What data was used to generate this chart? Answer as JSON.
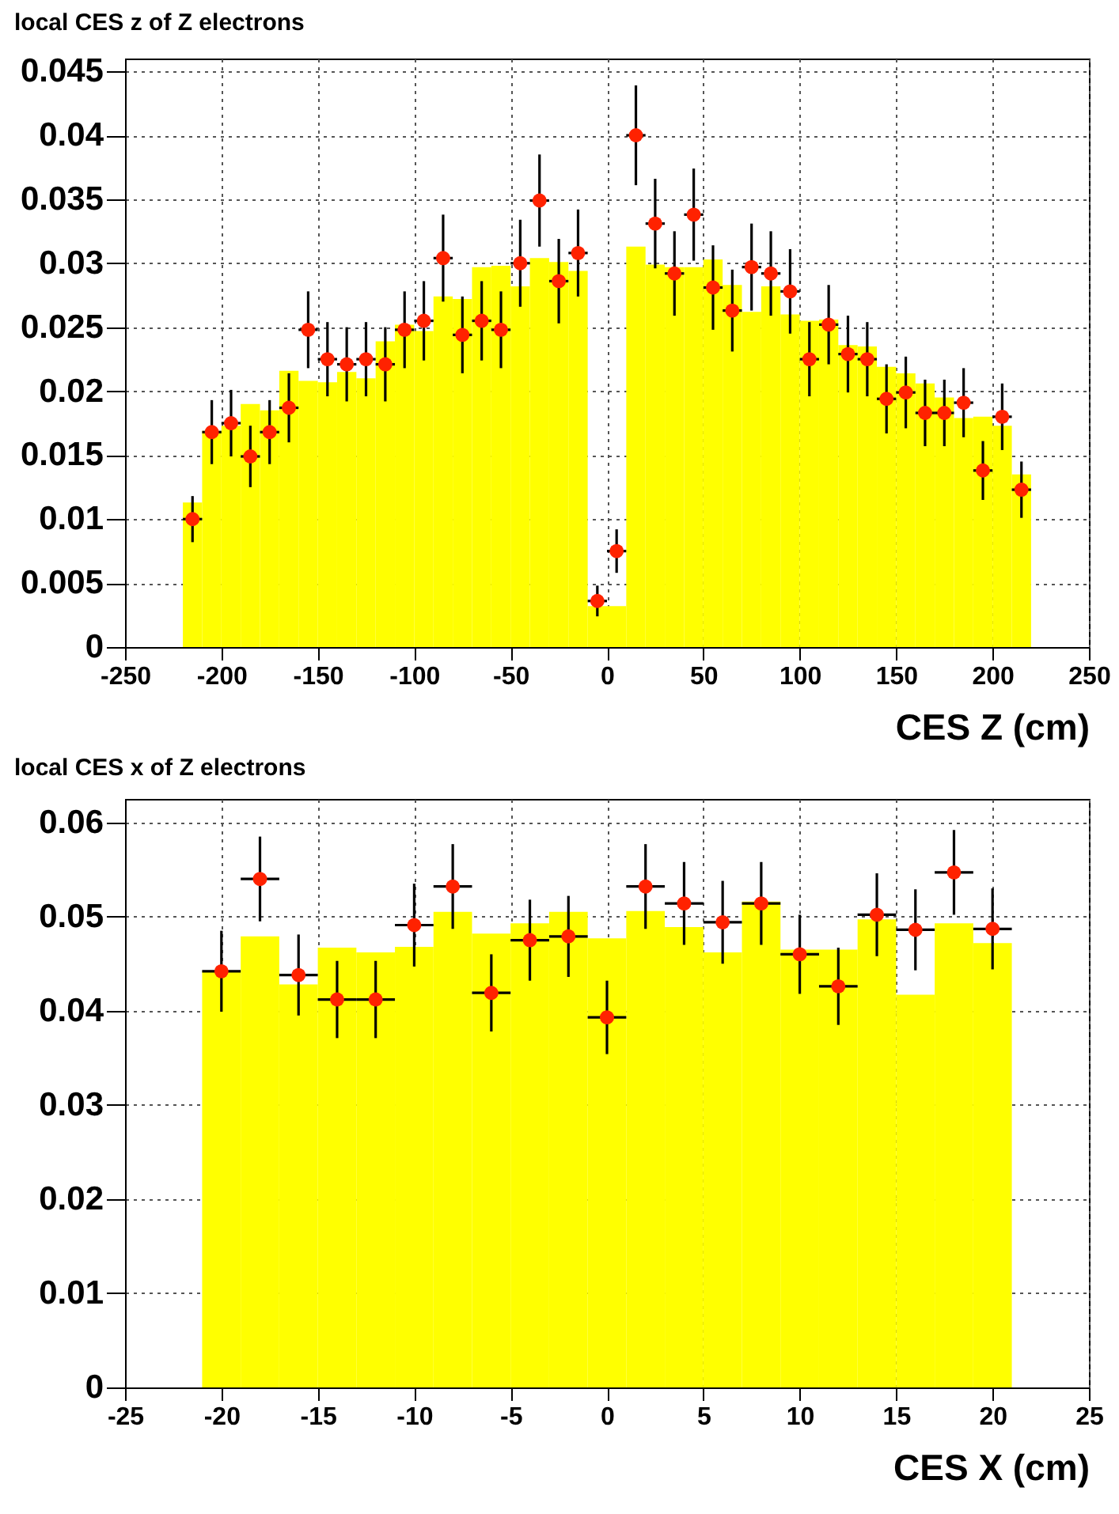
{
  "chart_data": [
    {
      "type": "histogram",
      "title": "local CES z of Z electrons",
      "xlabel": "CES Z (cm)",
      "xlim": [
        -250,
        250
      ],
      "xticks": [
        -250,
        -200,
        -150,
        -100,
        -50,
        0,
        50,
        100,
        150,
        200,
        250
      ],
      "ylim": [
        0,
        0.046
      ],
      "yticks": [
        0,
        0.005,
        0.01,
        0.015,
        0.02,
        0.025,
        0.03,
        0.035,
        0.04,
        0.045
      ],
      "grid": true,
      "series": [
        {
          "type": "histogram",
          "color": "#ffff00",
          "bins": [
            -220,
            -210,
            -200,
            -190,
            -180,
            -170,
            -160,
            -150,
            -140,
            -130,
            -120,
            -110,
            -100,
            -90,
            -80,
            -70,
            -60,
            -50,
            -40,
            -30,
            -20,
            -10,
            0,
            10,
            20,
            30,
            40,
            50,
            60,
            70,
            80,
            90,
            100,
            110,
            120,
            130,
            140,
            150,
            160,
            170,
            180,
            190,
            200,
            210,
            220
          ],
          "values": [
            0.0113,
            0.0169,
            0.0173,
            0.019,
            0.0185,
            0.0216,
            0.0208,
            0.0207,
            0.0215,
            0.021,
            0.0239,
            0.0252,
            0.0247,
            0.0274,
            0.0272,
            0.0297,
            0.0298,
            0.0282,
            0.0304,
            0.0301,
            0.0294,
            0.0032,
            0.0032,
            0.0313,
            0.0299,
            0.0297,
            0.0297,
            0.0303,
            0.0283,
            0.0262,
            0.0282,
            0.026,
            0.0255,
            0.0256,
            0.0236,
            0.0235,
            0.0219,
            0.0214,
            0.0206,
            0.0195,
            0.0179,
            0.018,
            0.0173,
            0.0135
          ]
        },
        {
          "type": "scatter",
          "color": "#ff2200",
          "marker": "circle",
          "x": [
            -215,
            -205,
            -195,
            -185,
            -175,
            -165,
            -155,
            -145,
            -135,
            -125,
            -115,
            -105,
            -95,
            -85,
            -75,
            -65,
            -55,
            -45,
            -35,
            -25,
            -15,
            -5,
            5,
            15,
            25,
            35,
            45,
            55,
            65,
            75,
            85,
            95,
            105,
            115,
            125,
            135,
            145,
            155,
            165,
            175,
            185,
            195,
            205,
            215
          ],
          "values": [
            0.01,
            0.0168,
            0.0175,
            0.0149,
            0.0168,
            0.0187,
            0.0248,
            0.0225,
            0.0221,
            0.0225,
            0.0221,
            0.0248,
            0.0255,
            0.0304,
            0.0244,
            0.0255,
            0.0248,
            0.03,
            0.0349,
            0.0286,
            0.0308,
            0.0036,
            0.0075,
            0.04,
            0.0331,
            0.0292,
            0.0338,
            0.0281,
            0.0263,
            0.0297,
            0.0292,
            0.0278,
            0.0225,
            0.0252,
            0.0229,
            0.0225,
            0.0194,
            0.0199,
            0.0183,
            0.0183,
            0.0191,
            0.0138,
            0.018,
            0.0123
          ],
          "errors": [
            0.0018,
            0.0025,
            0.0026,
            0.0024,
            0.0025,
            0.0027,
            0.003,
            0.0029,
            0.0029,
            0.0029,
            0.0029,
            0.003,
            0.0031,
            0.0034,
            0.003,
            0.0031,
            0.003,
            0.0034,
            0.0036,
            0.0033,
            0.0034,
            0.0012,
            0.0017,
            0.0039,
            0.0035,
            0.0033,
            0.0036,
            0.0033,
            0.0032,
            0.0034,
            0.0033,
            0.0033,
            0.0029,
            0.0031,
            0.003,
            0.0029,
            0.0027,
            0.0028,
            0.0026,
            0.0026,
            0.0027,
            0.0023,
            0.0026,
            0.0022
          ],
          "xerrors": [
            5,
            5,
            5,
            5,
            5,
            5,
            5,
            5,
            5,
            5,
            5,
            5,
            5,
            5,
            5,
            5,
            5,
            5,
            5,
            5,
            5,
            5,
            5,
            5,
            5,
            5,
            5,
            5,
            5,
            5,
            5,
            5,
            5,
            5,
            5,
            5,
            5,
            5,
            5,
            5,
            5,
            5,
            5,
            5
          ]
        }
      ]
    },
    {
      "type": "histogram",
      "title": "local CES x of Z electrons",
      "xlabel": "CES X (cm)",
      "xlim": [
        -25,
        25
      ],
      "xticks": [
        -25,
        -20,
        -15,
        -10,
        -5,
        0,
        5,
        10,
        15,
        20,
        25
      ],
      "ylim": [
        0,
        0.0625
      ],
      "yticks": [
        0,
        0.01,
        0.02,
        0.03,
        0.04,
        0.05,
        0.06
      ],
      "grid": true,
      "series": [
        {
          "type": "histogram",
          "color": "#ffff00",
          "bins": [
            -21,
            -19,
            -17,
            -15,
            -13,
            -11,
            -9,
            -7,
            -5,
            -3,
            -1,
            1,
            3,
            5,
            7,
            9,
            11,
            13,
            15,
            17,
            19,
            21
          ],
          "values": [
            0.0442,
            0.0479,
            0.0428,
            0.0467,
            0.0462,
            0.0468,
            0.0505,
            0.0482,
            0.0493,
            0.0505,
            0.0477,
            0.0506,
            0.0489,
            0.0462,
            0.0516,
            0.0465,
            0.0465,
            0.0497,
            0.0417,
            0.0493,
            0.0472
          ]
        },
        {
          "type": "scatter",
          "color": "#ff2200",
          "marker": "circle",
          "x": [
            -20,
            -18,
            -16,
            -14,
            -12,
            -10,
            -8,
            -6,
            -4,
            -2,
            0,
            2,
            4,
            6,
            8,
            10,
            12,
            14,
            16,
            18,
            20
          ],
          "values": [
            0.0442,
            0.054,
            0.0438,
            0.0412,
            0.0412,
            0.0491,
            0.0532,
            0.0419,
            0.0475,
            0.0479,
            0.0393,
            0.0532,
            0.0514,
            0.0494,
            0.0514,
            0.046,
            0.0426,
            0.0502,
            0.0486,
            0.0547,
            0.0487
          ],
          "errors": [
            0.0043,
            0.0045,
            0.0043,
            0.0041,
            0.0041,
            0.0044,
            0.0045,
            0.0041,
            0.0043,
            0.0043,
            0.0039,
            0.0045,
            0.0044,
            0.0044,
            0.0044,
            0.0042,
            0.0041,
            0.0044,
            0.0043,
            0.0045,
            0.0043
          ],
          "xerrors": [
            1,
            1,
            1,
            1,
            1,
            1,
            1,
            1,
            1,
            1,
            1,
            1,
            1,
            1,
            1,
            1,
            1,
            1,
            1,
            1,
            1
          ]
        }
      ]
    }
  ]
}
